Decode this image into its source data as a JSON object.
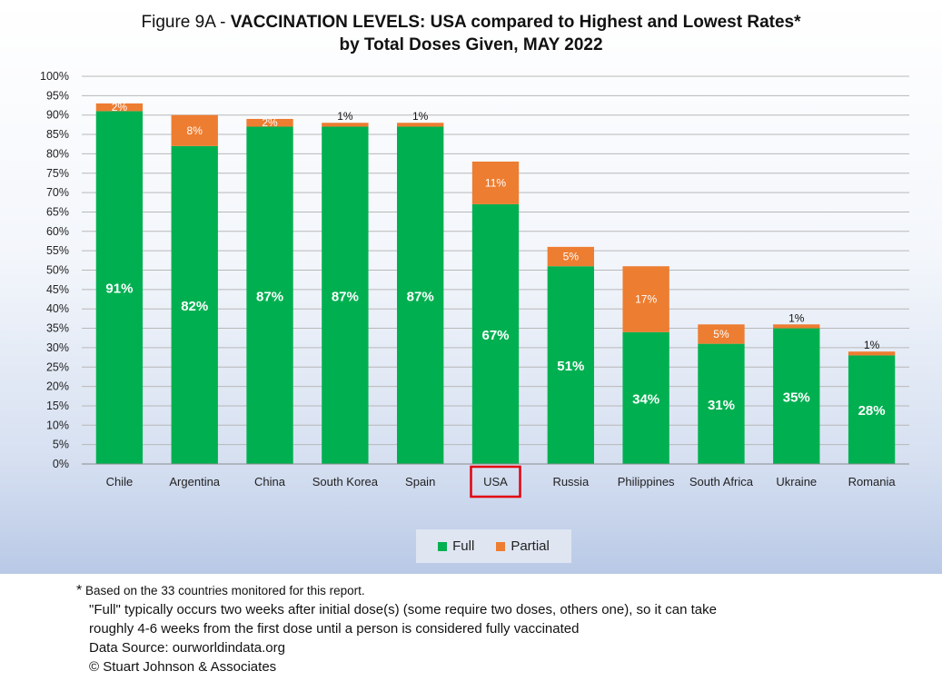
{
  "title": {
    "prefix": "Figure 9A - ",
    "bold_line1": "VACCINATION LEVELS:  USA compared to Highest and Lowest Rates*",
    "line2": "by Total Doses Given, MAY 2022"
  },
  "colors": {
    "full": "#00b050",
    "partial": "#ed7d31",
    "highlight_box": "#e3000f",
    "grid": "#b8b8b8"
  },
  "chart_data": {
    "type": "bar",
    "stacked": true,
    "categories": [
      "Chile",
      "Argentina",
      "China",
      "South Korea",
      "Spain",
      "USA",
      "Russia",
      "Philippines",
      "South Africa",
      "Ukraine",
      "Romania"
    ],
    "series": [
      {
        "name": "Full",
        "values": [
          91,
          82,
          87,
          87,
          87,
          67,
          51,
          34,
          31,
          35,
          28
        ]
      },
      {
        "name": "Partial",
        "values": [
          2,
          8,
          2,
          1,
          1,
          11,
          5,
          17,
          5,
          1,
          1
        ]
      }
    ],
    "ylim": [
      0,
      100
    ],
    "yticks": [
      "0%",
      "5%",
      "10%",
      "15%",
      "20%",
      "25%",
      "30%",
      "35%",
      "40%",
      "45%",
      "50%",
      "55%",
      "60%",
      "65%",
      "70%",
      "75%",
      "80%",
      "85%",
      "90%",
      "95%",
      "100%"
    ],
    "full_labels": [
      "91%",
      "82%",
      "87%",
      "87%",
      "87%",
      "67%",
      "51%",
      "34%",
      "31%",
      "35%",
      "28%"
    ],
    "partial_labels": [
      "2%",
      "8%",
      "2%",
      "1%",
      "1%",
      "11%",
      "5%",
      "17%",
      "5%",
      "1%",
      "1%"
    ],
    "highlighted_category": "USA",
    "grid": true,
    "legend_position": "bottom"
  },
  "legend": {
    "full": "Full",
    "partial": "Partial"
  },
  "footnotes": {
    "star": "*",
    "line1": "Based on the 33 countries monitored for this report.",
    "line2": "\"Full\" typically occurs two weeks after initial dose(s) (some require two doses, others one),  so it can take",
    "line3": "roughly 4-6 weeks from the first dose until a person is considered fully vaccinated",
    "line4": "Data Source:  ourworldindata.org",
    "line5": "© Stuart Johnson & Associates"
  }
}
